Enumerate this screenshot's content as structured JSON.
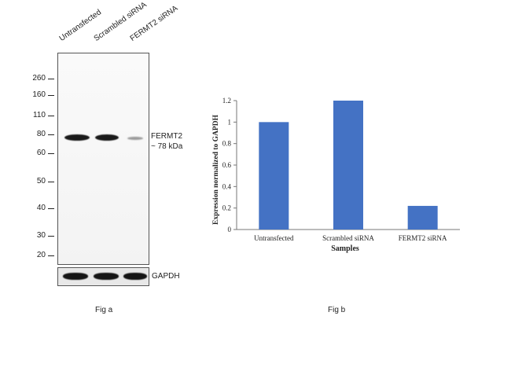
{
  "fig_a": {
    "lanes": [
      "Untransfected",
      "Scrambled siRNA",
      "FERMT2 siRNA"
    ],
    "mw_markers": [
      "260",
      "160",
      "110",
      "80",
      "60",
      "50",
      "40",
      "30",
      "20"
    ],
    "target_label": "FERMT2",
    "target_size": "~ 78 kDa",
    "loading_control": "GAPDH",
    "band_intensity": [
      1.0,
      1.0,
      0.25
    ],
    "caption": "Fig a"
  },
  "chart_data": {
    "type": "bar",
    "categories": [
      "Untransfected",
      "Scrambled siRNA",
      "FERMT2 siRNA"
    ],
    "values": [
      1.0,
      1.2,
      0.22
    ],
    "title": "",
    "xlabel": "Samples",
    "ylabel": "Expression normalized to GAPDH",
    "ylim": [
      0,
      1.2
    ],
    "yticks": [
      "0",
      "0.2",
      "0.4",
      "0.6",
      "0.8",
      "1",
      "1.2"
    ],
    "bar_color": "#4472c4",
    "grid": false
  },
  "fig_b": {
    "caption": "Fig b"
  }
}
